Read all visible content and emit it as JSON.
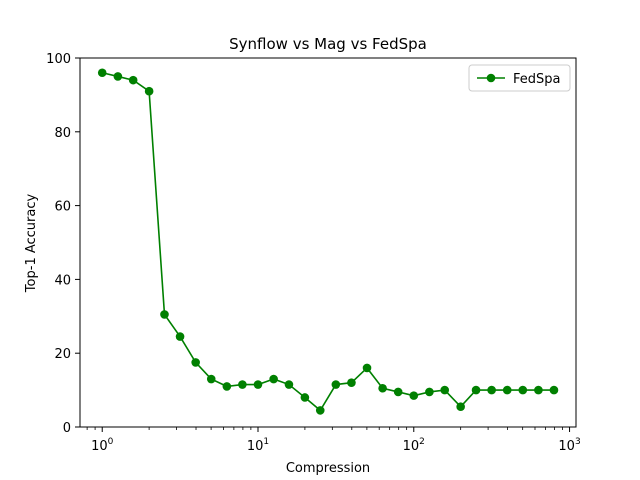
{
  "chart_data": {
    "type": "line",
    "title": "Synflow vs Mag vs FedSpa",
    "xlabel": "Compression",
    "ylabel": "Top-1 Accuracy",
    "xscale": "log",
    "xlim": [
      0.72,
      1100
    ],
    "ylim": [
      0,
      100
    ],
    "x_ticks": [
      {
        "base": "10",
        "exp": "0"
      },
      {
        "base": "10",
        "exp": "1"
      },
      {
        "base": "10",
        "exp": "2"
      },
      {
        "base": "10",
        "exp": "3"
      }
    ],
    "y_ticks": [
      "0",
      "20",
      "40",
      "60",
      "80",
      "100"
    ],
    "grid": false,
    "legend_position": "top-right",
    "series": [
      {
        "name": "FedSpa",
        "color": "#008000",
        "marker": "circle",
        "x": [
          1.0,
          1.26,
          1.58,
          2.0,
          2.51,
          3.16,
          3.98,
          5.01,
          6.31,
          7.94,
          10.0,
          12.6,
          15.8,
          20.0,
          25.1,
          31.6,
          39.8,
          50.1,
          63.1,
          79.4,
          100,
          126,
          158,
          200,
          251,
          316,
          398,
          501,
          631,
          794
        ],
        "y": [
          96.0,
          95.0,
          94.0,
          91.0,
          30.5,
          24.5,
          17.5,
          13.0,
          11.0,
          11.5,
          11.5,
          13.0,
          11.5,
          8.0,
          4.5,
          11.5,
          12.0,
          16.0,
          10.5,
          9.5,
          8.5,
          9.5,
          10.0,
          5.5,
          10.0,
          10.0,
          10.0,
          10.0,
          10.0,
          10.0
        ]
      }
    ]
  }
}
